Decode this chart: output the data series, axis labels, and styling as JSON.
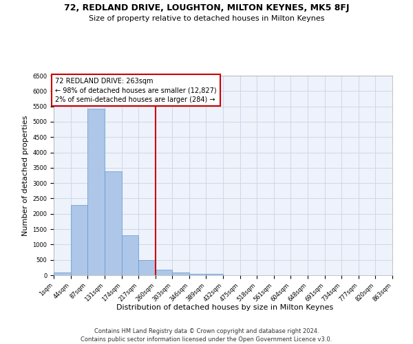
{
  "title": "72, REDLAND DRIVE, LOUGHTON, MILTON KEYNES, MK5 8FJ",
  "subtitle": "Size of property relative to detached houses in Milton Keynes",
  "xlabel": "Distribution of detached houses by size in Milton Keynes",
  "ylabel": "Number of detached properties",
  "footer_line1": "Contains HM Land Registry data © Crown copyright and database right 2024.",
  "footer_line2": "Contains public sector information licensed under the Open Government Licence v3.0.",
  "bin_edges": [
    1,
    44,
    87,
    131,
    174,
    217,
    260,
    303,
    346,
    389,
    432,
    475,
    518,
    561,
    604,
    648,
    691,
    734,
    777,
    820,
    863
  ],
  "bar_heights": [
    80,
    2280,
    5420,
    3380,
    1300,
    490,
    170,
    80,
    50,
    50,
    10,
    5,
    5,
    0,
    0,
    0,
    0,
    0,
    0,
    0
  ],
  "bar_color": "#aec6e8",
  "bar_edge_color": "#5b9bd5",
  "vline_x": 260,
  "vline_color": "#cc0000",
  "annotation_text": "72 REDLAND DRIVE: 263sqm\n← 98% of detached houses are smaller (12,827)\n2% of semi-detached houses are larger (284) →",
  "annotation_box_color": "#cc0000",
  "ylim": [
    0,
    6500
  ],
  "background_color": "#eef2fa",
  "grid_color": "#c8d4e8",
  "title_fontsize": 9,
  "subtitle_fontsize": 8,
  "tick_label_fontsize": 6,
  "ylabel_fontsize": 8,
  "xlabel_fontsize": 8,
  "footer_fontsize": 6,
  "annotation_fontsize": 7
}
